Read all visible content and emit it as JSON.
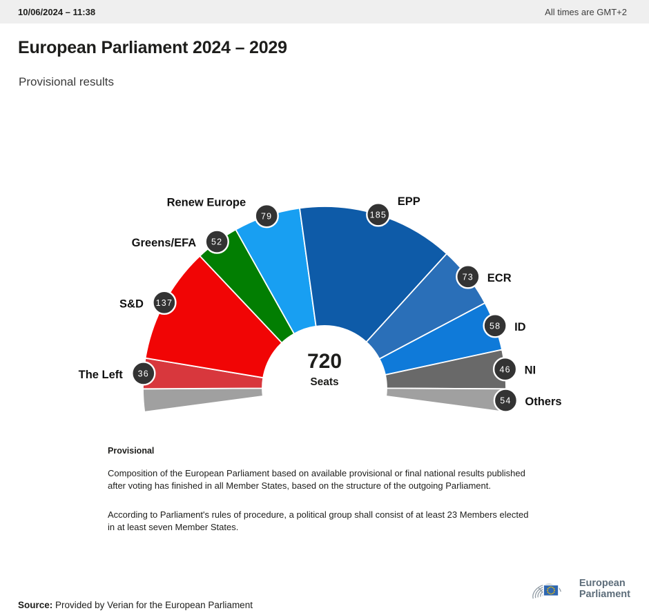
{
  "header": {
    "datetime": "10/06/2024 – 11:38",
    "timezone_note": "All times are GMT+2"
  },
  "title": "European Parliament 2024 – 2029",
  "subtitle": "Provisional results",
  "chart_data": {
    "type": "pie",
    "subtype": "half-donut-hemicycle",
    "title": "European Parliament 2024 – 2029",
    "total_seats": 720,
    "center_label": {
      "number": "720",
      "text": "Seats"
    },
    "series": [
      {
        "name": "The Left",
        "value": 36,
        "color": "#d8373d"
      },
      {
        "name": "S&D",
        "value": 137,
        "color": "#f10505"
      },
      {
        "name": "Greens/EFA",
        "value": 52,
        "color": "#027e02"
      },
      {
        "name": "Renew Europe",
        "value": 79,
        "color": "#189ff2"
      },
      {
        "name": "EPP",
        "value": 185,
        "color": "#0e5ba8"
      },
      {
        "name": "ECR",
        "value": 73,
        "color": "#2a6fb8"
      },
      {
        "name": "ID",
        "value": 58,
        "color": "#0f7ad9"
      },
      {
        "name": "NI",
        "value": 46,
        "color": "#696969"
      },
      {
        "name": "Others",
        "value": 54,
        "color": "#a0a0a0"
      }
    ],
    "layout": {
      "arc_degrees": 195.2,
      "others_split_left_seats": 27,
      "badge_color": "#333333",
      "badge_text_color": "#ffffff",
      "label_color": "#111111",
      "legend_position": "around-arc",
      "grid": false
    }
  },
  "notes": {
    "heading": "Provisional",
    "p1": "Composition of the European Parliament based on available provisional or final national results published after voting has finished in all Member States, based on the structure of the outgoing Parliament.",
    "p2": "According to Parliament's rules of procedure, a political group shall consist of at least 23 Members elected in at least seven Member States."
  },
  "footer": {
    "source_label": "Source:",
    "source_text": "Provided by Verian for the European Parliament",
    "logo": {
      "line1": "European",
      "line2": "Parliament"
    }
  }
}
